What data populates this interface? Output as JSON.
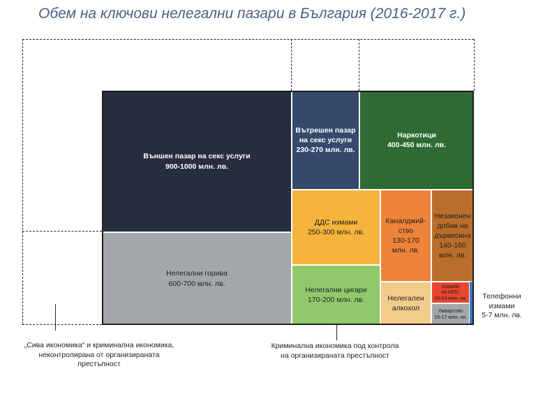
{
  "title": "Обем на ключови нелегални пазари в България (2016-2017 г.)",
  "chart_data": {
    "type": "treemap",
    "title": "Обем на ключови нелегални пазари в България (2016-2017 г.)",
    "unit": "млн. лв.",
    "items": [
      {
        "id": "sex_external",
        "name": "Външен пазар на секс услуги",
        "range": "900-1000 млн. лв.",
        "min": 900,
        "max": 1000,
        "color": "#282d3e"
      },
      {
        "id": "fuel",
        "name": "Нелегални горива",
        "range": "600-700 млн. лв.",
        "min": 600,
        "max": 700,
        "color": "#a3a7aa"
      },
      {
        "id": "sex_internal",
        "name": "Вътрешен пазар на секс услуги",
        "range": "230-270 млн. лв.",
        "min": 230,
        "max": 270,
        "color": "#34496c"
      },
      {
        "id": "drugs",
        "name": "Наркотици",
        "range": "400-450 млн. лв.",
        "min": 400,
        "max": 450,
        "color": "#2e6a33"
      },
      {
        "id": "vat",
        "name": "ДДС измами",
        "range": "250-300 млн. лв.",
        "min": 250,
        "max": 300,
        "color": "#f6b43c"
      },
      {
        "id": "cigarettes",
        "name": "Нелегални цигари",
        "range": "170-200 млн. лв.",
        "min": 170,
        "max": 200,
        "color": "#8fc96c"
      },
      {
        "id": "sewage",
        "name": "Каналджий-ство",
        "range": "130-170 млн. лв.",
        "min": 130,
        "max": 170,
        "color": "#ef8339"
      },
      {
        "id": "timber",
        "name": "Незаконен добив на дървесина",
        "range": "140-160 млн. лв.",
        "min": 140,
        "max": 160,
        "color": "#b96f2b"
      },
      {
        "id": "alcohol",
        "name": "Нелегален алкохол",
        "range": "",
        "min": null,
        "max": null,
        "color": "#f3cc8b"
      },
      {
        "id": "cars",
        "name": "Кражби на МПС",
        "range": "20-24 млн. лв.",
        "min": 20,
        "max": 24,
        "color": "#e8462f"
      },
      {
        "id": "scrap",
        "name": "Ливарство",
        "range": "15-17 млн. лв.",
        "min": 15,
        "max": 17,
        "color": "#a3a7aa"
      },
      {
        "id": "phone",
        "name": "Телефонни измами",
        "range": "5-7 млн. лв.",
        "min": 5,
        "max": 7,
        "color": "#3a78c0"
      }
    ],
    "labels": {
      "sex_external": "Външен пазар на секс услуги\n900-1000 млн. лв.",
      "fuel": "Нелегални горива\n600-700 млн. лв.",
      "sex_internal": "Вътрешен пазар\nна секс услуги\n230-270 млн. лв.",
      "drugs": "Наркотици\n400-450 млн. лв.",
      "vat": "ДДС измами\n250-300 млн. лв.",
      "cigarettes": "Нелегални цигари\n170-200 млн. лв.",
      "sewage": "Каналджий-\nство\n130-170\nмлн. лв.",
      "timber": "Незаконен\nдобив на\nдървесина\n140-160\nмлн. лв.",
      "alcohol": "Нелегален\nалкохол",
      "cars": "Кражби\nна МПС\n20-24 млн. лв.",
      "scrap": "Ливарство\n15-17 млн. лв.",
      "phone": "Телефонни\nизмами\n5-7 млн. лв."
    },
    "annotations": {
      "grey": "„Сива икономика“ и криминална икономика,\nнеконтролирана от организираната\nпрестъпност",
      "organized": "Криминална икономика под контрола\nна организираната престъпност"
    }
  }
}
